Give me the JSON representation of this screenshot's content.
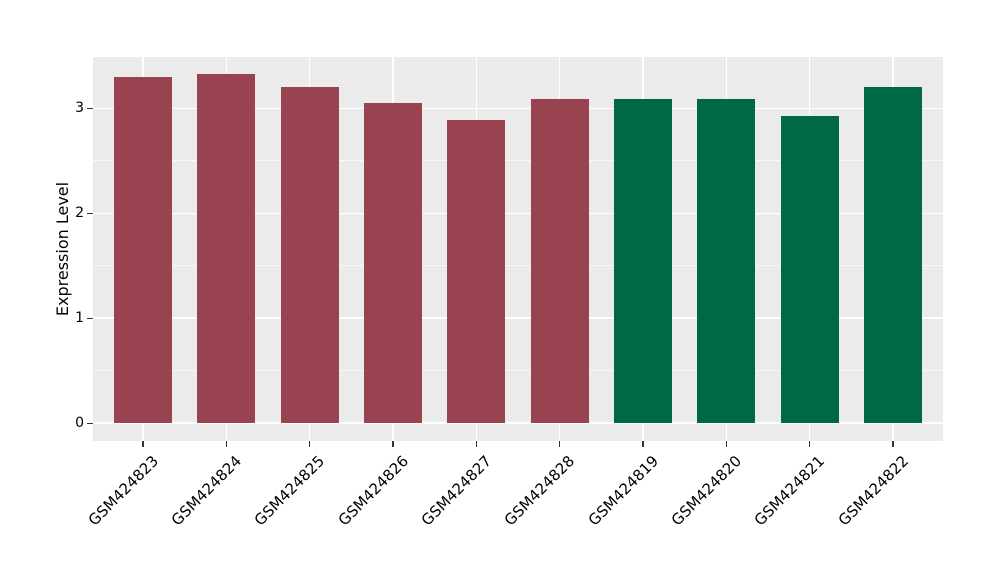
{
  "figure": {
    "background": "#FFFFFF"
  },
  "chart_data": {
    "type": "bar",
    "title": "",
    "xlabel": "",
    "ylabel": "Expression Level",
    "categories": [
      "GSM424823",
      "GSM424824",
      "GSM424825",
      "GSM424826",
      "GSM424827",
      "GSM424828",
      "GSM424819",
      "GSM424820",
      "GSM424821",
      "GSM424822"
    ],
    "values": [
      3.3,
      3.33,
      3.2,
      3.05,
      2.89,
      3.09,
      3.09,
      3.09,
      2.93,
      3.2
    ],
    "bar_colors": [
      "#9A4350",
      "#9A4350",
      "#9A4350",
      "#9A4350",
      "#9A4350",
      "#9A4350",
      "#006847",
      "#006847",
      "#006847",
      "#006847"
    ],
    "yticks": [
      0,
      1,
      2,
      3
    ],
    "yticks_minor": [
      0.5,
      1.5,
      2.5
    ],
    "ylim": [
      -0.17,
      3.49
    ],
    "bar_width_units": 0.7,
    "x_expand_units": 0.6,
    "grid": "on",
    "legend": "none",
    "panel_background": "#EBEBEB",
    "grid_color": "#FFFFFF",
    "tick_color": "#333333",
    "text_color": "#000000"
  }
}
